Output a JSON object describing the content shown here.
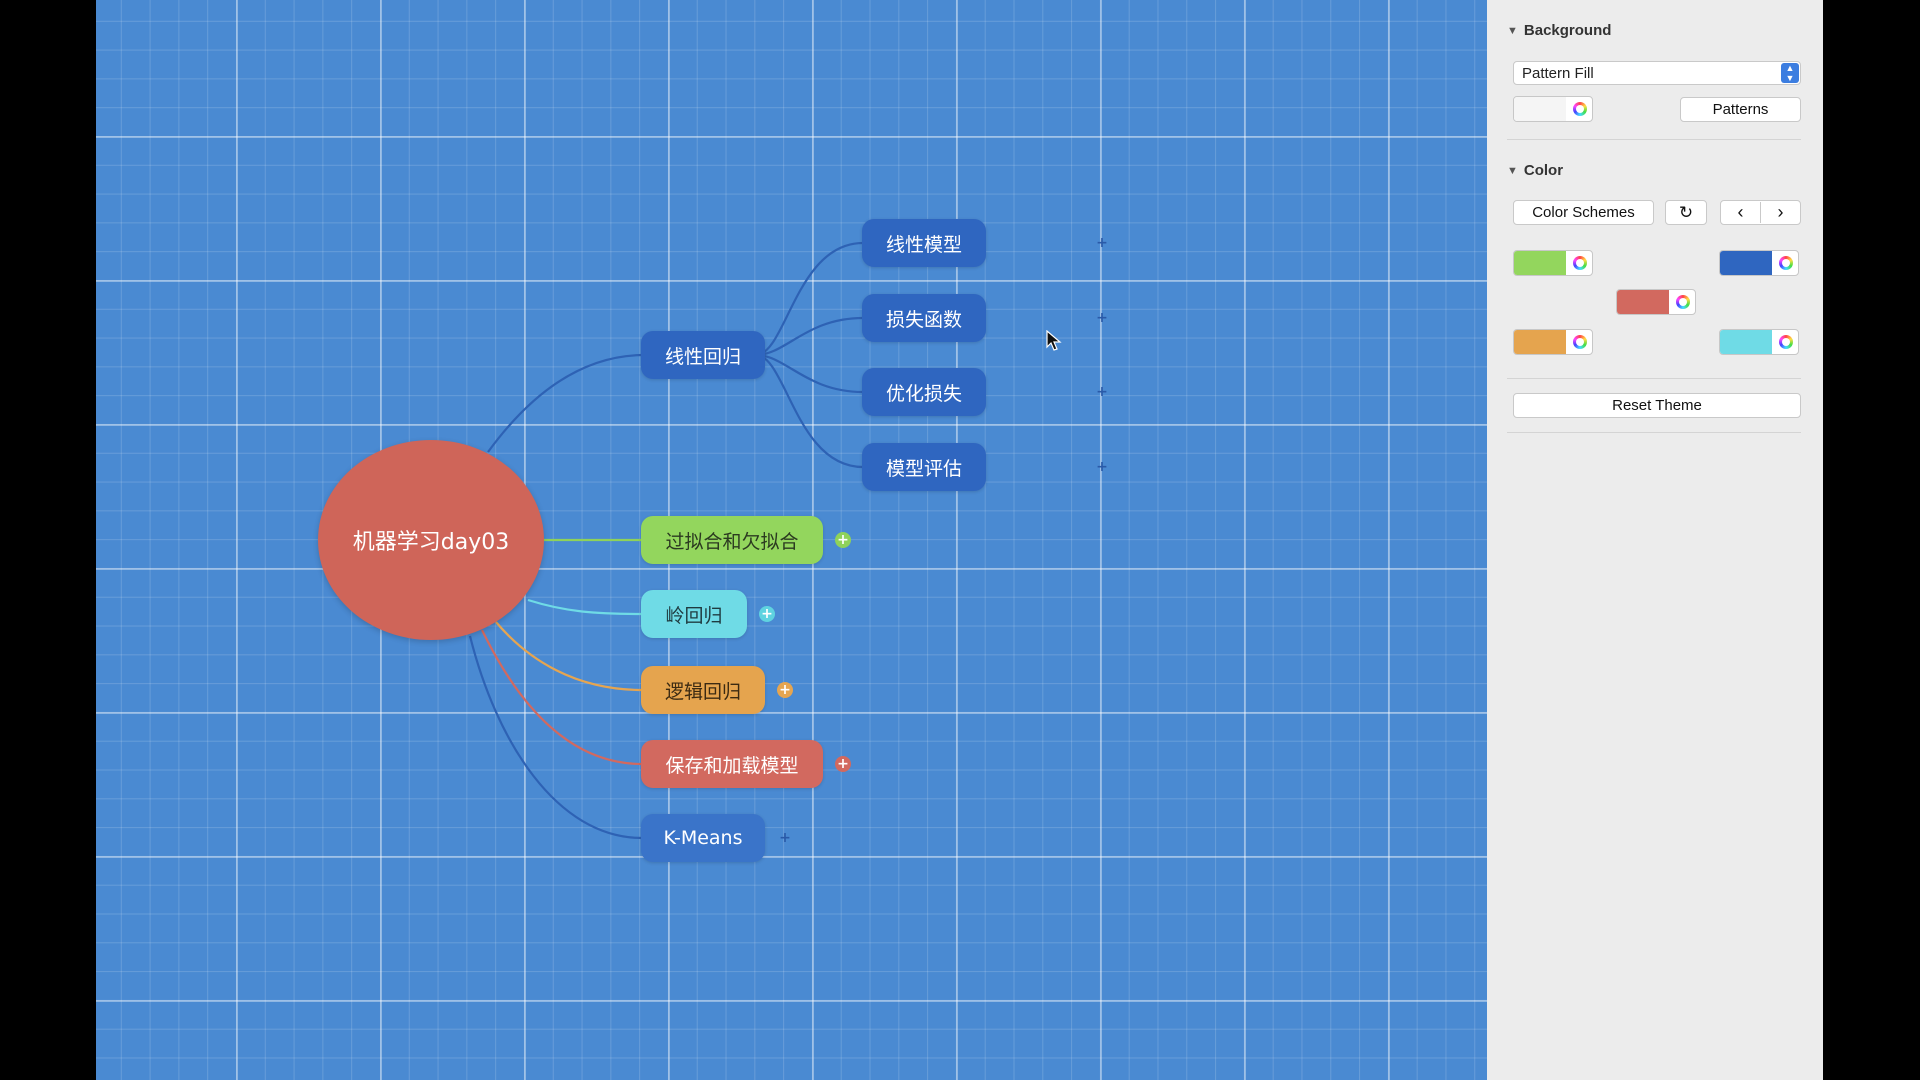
{
  "mindmap": {
    "root": "机器学习day03",
    "branches": {
      "linear_regression": "线性回归",
      "overfit": "过拟合和欠拟合",
      "ridge": "岭回归",
      "logistic": "逻辑回归",
      "save_load": "保存和加载模型",
      "kmeans": "K-Means"
    },
    "subtopics": {
      "linear_model": "线性模型",
      "loss_function": "损失函数",
      "optimize_loss": "优化损失",
      "model_eval": "模型评估"
    },
    "plus_glyph": "+"
  },
  "panel": {
    "background": {
      "heading": "Background",
      "fill_type": "Pattern Fill",
      "patterns_button": "Patterns"
    },
    "color": {
      "heading": "Color",
      "schemes_button": "Color Schemes",
      "swatches": [
        "#93d65d",
        "#2f66c0",
        "#d2695f",
        "#e5a44e",
        "#6fdbe6"
      ],
      "reset_button": "Reset Theme"
    }
  },
  "colors": {
    "canvas": "#4a8ad2",
    "root": "#cf6559",
    "topic_blue": "#2f66c0"
  }
}
